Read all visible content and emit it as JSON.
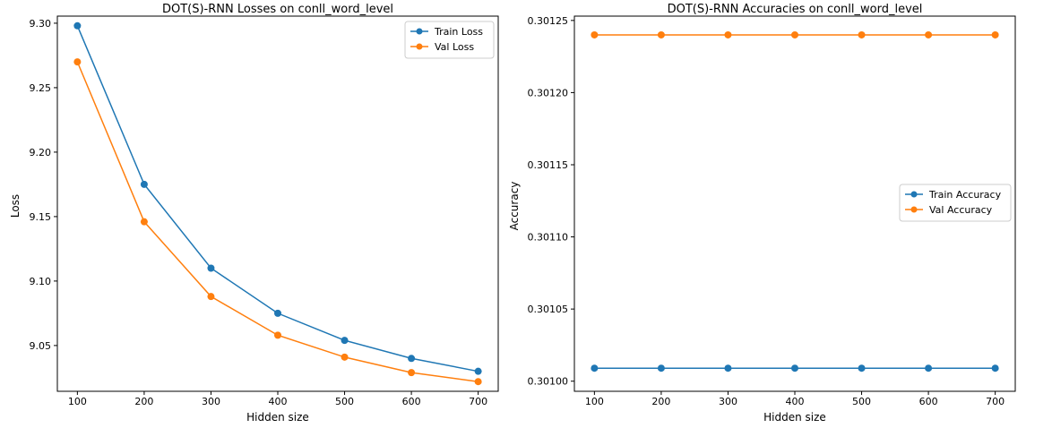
{
  "chart_data": [
    {
      "type": "line",
      "title": "DOT(S)-RNN Losses on conll_word_level",
      "xlabel": "Hidden size",
      "ylabel": "Loss",
      "x": [
        100,
        200,
        300,
        400,
        500,
        600,
        700
      ],
      "xticks": [
        "100",
        "200",
        "300",
        "400",
        "500",
        "600",
        "700"
      ],
      "yticks": [
        "9.05",
        "9.10",
        "9.15",
        "9.20",
        "9.25",
        "9.30"
      ],
      "ytick_values": [
        9.05,
        9.1,
        9.15,
        9.2,
        9.25,
        9.3
      ],
      "xlim": [
        70,
        730
      ],
      "ylim": [
        9.0145,
        9.3055
      ],
      "grid": false,
      "legend": "top-right",
      "series": [
        {
          "name": "Train Loss",
          "color": "#1f77b4",
          "values": [
            9.298,
            9.175,
            9.11,
            9.075,
            9.054,
            9.04,
            9.03
          ]
        },
        {
          "name": "Val Loss",
          "color": "#ff7f0e",
          "values": [
            9.27,
            9.146,
            9.088,
            9.058,
            9.041,
            9.029,
            9.022
          ]
        }
      ]
    },
    {
      "type": "line",
      "title": "DOT(S)-RNN Accuracies on conll_word_level",
      "xlabel": "Hidden size",
      "ylabel": "Accuracy",
      "x": [
        100,
        200,
        300,
        400,
        500,
        600,
        700
      ],
      "xticks": [
        "100",
        "200",
        "300",
        "400",
        "500",
        "600",
        "700"
      ],
      "yticks": [
        "0.30100",
        "0.30105",
        "0.30110",
        "0.30115",
        "0.30120",
        "0.30125"
      ],
      "ytick_values": [
        0.301,
        0.30105,
        0.3011,
        0.30115,
        0.3012,
        0.30125
      ],
      "xlim": [
        70,
        730
      ],
      "ylim": [
        0.300993,
        0.301253
      ],
      "grid": false,
      "legend": "center-right",
      "series": [
        {
          "name": "Train Accuracy",
          "color": "#1f77b4",
          "values": [
            0.301009,
            0.301009,
            0.301009,
            0.301009,
            0.301009,
            0.301009,
            0.301009
          ]
        },
        {
          "name": "Val Accuracy",
          "color": "#ff7f0e",
          "values": [
            0.30124,
            0.30124,
            0.30124,
            0.30124,
            0.30124,
            0.30124,
            0.30124
          ]
        }
      ]
    }
  ]
}
